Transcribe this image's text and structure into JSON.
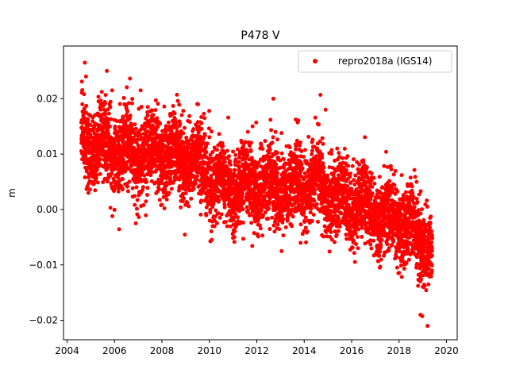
{
  "chart_data": {
    "type": "scatter",
    "title": "P478 V",
    "xlabel": "",
    "ylabel": "m",
    "xlim": [
      2003.85,
      2020.45
    ],
    "ylim": [
      -0.0235,
      0.0295
    ],
    "x_ticks": [
      2004,
      2006,
      2008,
      2010,
      2012,
      2014,
      2016,
      2018,
      2020
    ],
    "y_ticks": [
      -0.02,
      -0.01,
      0.0,
      0.01,
      0.02
    ],
    "y_tick_labels": [
      "−0.02",
      "−0.01",
      "0.00",
      "0.01",
      "0.02"
    ],
    "grid": false,
    "legend_position": "top-right",
    "series": [
      {
        "name": "repro2018a (IGS14)",
        "color": "#ff0000",
        "marker": "circle",
        "time_start": 2004.6,
        "time_end": 2019.4,
        "trend_points": [
          [
            2004.6,
            0.0125
          ],
          [
            2005.5,
            0.0115
          ],
          [
            2006.5,
            0.0105
          ],
          [
            2007.5,
            0.0095
          ],
          [
            2008.5,
            0.0095
          ],
          [
            2009.5,
            0.0085
          ],
          [
            2010.5,
            0.004
          ],
          [
            2011.5,
            0.004
          ],
          [
            2012.5,
            0.0045
          ],
          [
            2013.5,
            0.004
          ],
          [
            2014.5,
            0.005
          ],
          [
            2015.5,
            0.0015
          ],
          [
            2016.5,
            0.001
          ],
          [
            2017.5,
            -0.002
          ],
          [
            2018.5,
            -0.0035
          ],
          [
            2019.4,
            -0.0075
          ]
        ],
        "noise_sd": 0.0035,
        "seasonal_amplitude": 0.002,
        "outliers": [
          [
            2004.75,
            0.0265
          ],
          [
            2004.8,
            0.024
          ],
          [
            2005.9,
            0.0215
          ],
          [
            2007.1,
            0.0215
          ],
          [
            2012.7,
            0.02
          ],
          [
            2014.9,
            0.018
          ],
          [
            2019.2,
            -0.021
          ],
          [
            2018.9,
            -0.019
          ],
          [
            2009.8,
            0.0165
          ],
          [
            2006.9,
            -0.0025
          ]
        ]
      }
    ]
  }
}
